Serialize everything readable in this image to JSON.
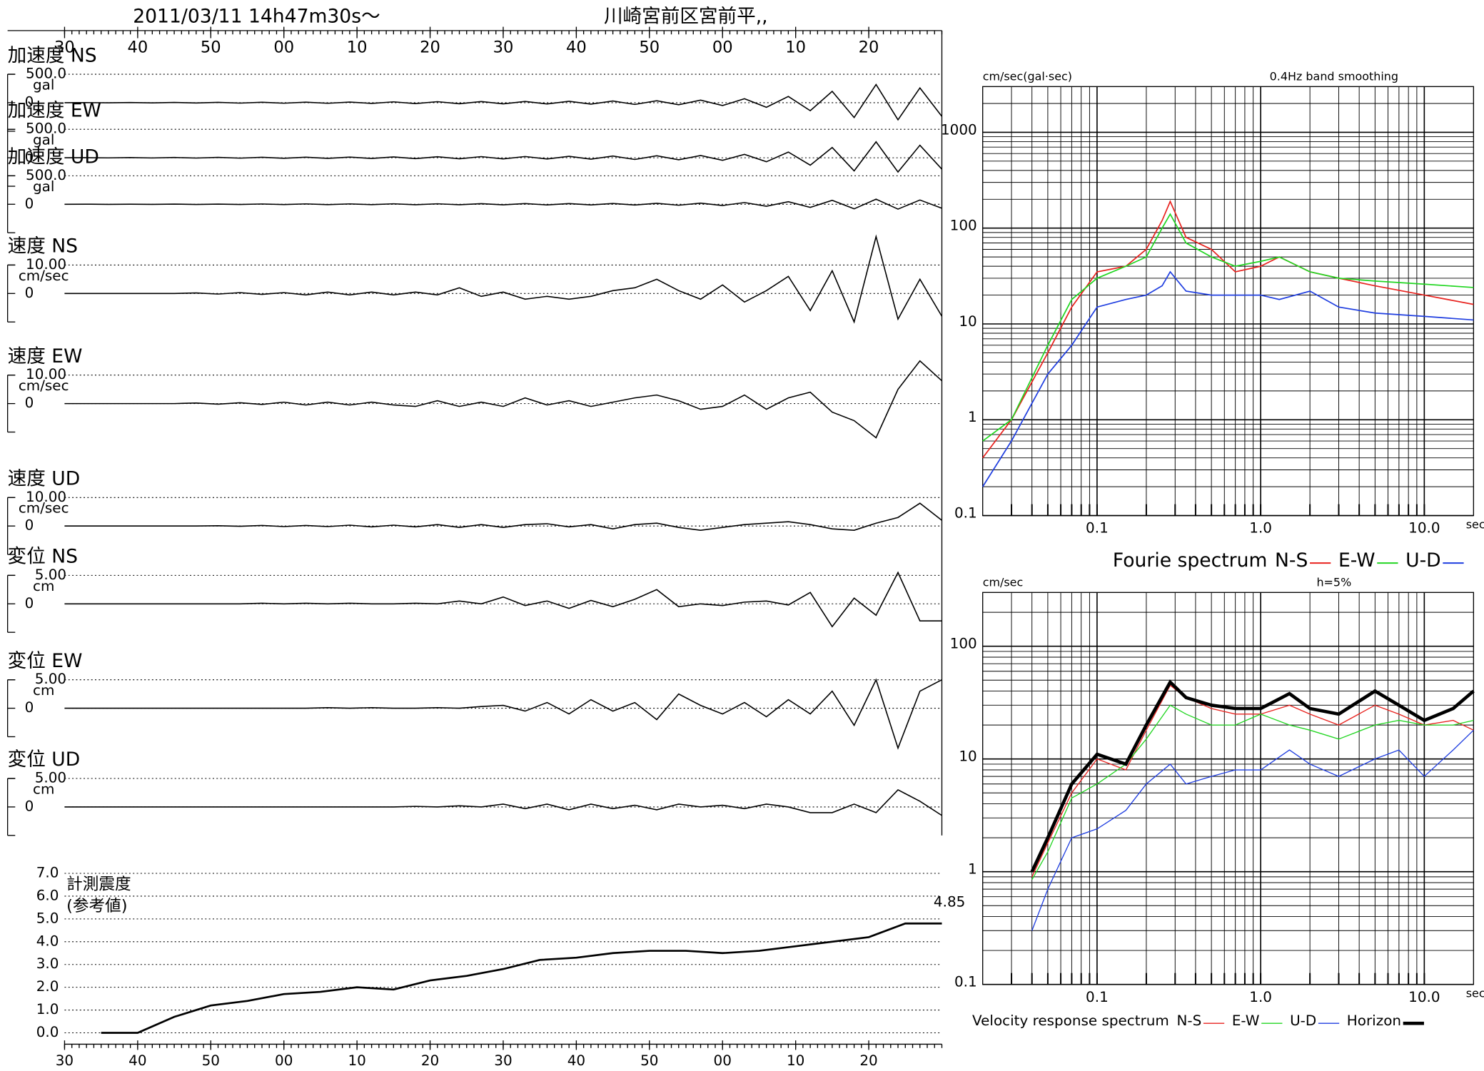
{
  "header": {
    "datetime": "2011/03/11  14h47m30s〜",
    "station": "川崎宮前区宮前平,,"
  },
  "chart_data": [
    {
      "type": "waveform",
      "x": [
        0,
        3,
        6,
        9,
        12,
        15,
        18,
        21,
        24,
        27,
        30,
        33,
        36,
        39,
        42,
        45,
        48,
        51,
        54,
        57,
        60,
        63,
        66,
        69,
        72,
        75,
        78,
        81,
        84,
        87,
        90,
        93,
        96,
        99,
        102,
        105,
        108,
        111,
        114,
        117,
        120
      ],
      "xlim": [
        0,
        120
      ],
      "xticks": [
        {
          "value": 0,
          "label": "30"
        },
        {
          "value": 10,
          "label": "40"
        },
        {
          "value": 20,
          "label": "50"
        },
        {
          "value": 30,
          "label": "00"
        },
        {
          "value": 40,
          "label": "10"
        },
        {
          "value": 50,
          "label": "20"
        },
        {
          "value": 60,
          "label": "30"
        },
        {
          "value": 70,
          "label": "40"
        },
        {
          "value": 80,
          "label": "50"
        },
        {
          "value": 90,
          "label": "00"
        },
        {
          "value": 100,
          "label": "10"
        },
        {
          "value": 110,
          "label": "20"
        }
      ],
      "panels": [
        {
          "title": "加速度 NS",
          "unit": "gal",
          "ylim": [
            -500,
            500
          ],
          "yticks": [
            {
              "value": 500,
              "label": "500.0"
            },
            0
          ],
          "values": [
            0,
            2,
            -2,
            3,
            -3,
            5,
            -5,
            6,
            -6,
            8,
            -8,
            10,
            -10,
            12,
            -12,
            15,
            -15,
            18,
            -18,
            20,
            -20,
            22,
            -22,
            25,
            -25,
            30,
            -30,
            35,
            -35,
            45,
            -50,
            70,
            -80,
            110,
            -140,
            200,
            -260,
            320,
            -300,
            260,
            -240
          ]
        },
        {
          "title": "加速度 EW",
          "unit": "gal",
          "ylim": [
            -500,
            500
          ],
          "yticks": [
            {
              "value": 500,
              "label": "500.0"
            },
            0
          ],
          "values": [
            0,
            2,
            -2,
            3,
            -3,
            5,
            -5,
            6,
            -6,
            8,
            -8,
            10,
            -10,
            12,
            -12,
            15,
            -15,
            18,
            -18,
            20,
            -20,
            22,
            -22,
            25,
            -25,
            30,
            -30,
            35,
            -35,
            40,
            -45,
            60,
            -70,
            100,
            -130,
            180,
            -230,
            280,
            -250,
            220,
            -200
          ]
        },
        {
          "title": "加速度 UD",
          "unit": "gal",
          "ylim": [
            -500,
            500
          ],
          "yticks": [
            {
              "value": 500,
              "label": "500.0"
            },
            0
          ],
          "values": [
            0,
            1,
            -1,
            2,
            -2,
            3,
            -3,
            4,
            -4,
            5,
            -5,
            6,
            -6,
            7,
            -7,
            8,
            -8,
            9,
            -9,
            10,
            -10,
            11,
            -11,
            12,
            -12,
            14,
            -14,
            16,
            -16,
            20,
            -22,
            30,
            -35,
            45,
            -55,
            70,
            -80,
            90,
            -85,
            75,
            -70
          ]
        },
        {
          "title": "速度 NS",
          "unit": "cm/sec",
          "ylim": [
            -10,
            10
          ],
          "yticks": [
            {
              "value": 10,
              "label": "10.00"
            },
            0
          ],
          "values": [
            0,
            0,
            0,
            0,
            0,
            0,
            0.2,
            -0.2,
            0.3,
            -0.3,
            0.3,
            -0.5,
            0.5,
            -0.5,
            0.5,
            -0.5,
            0.5,
            -0.5,
            2,
            -1,
            0.5,
            -2,
            -1,
            -2,
            -1,
            1,
            2,
            5,
            1,
            -2,
            3,
            -3,
            1,
            6,
            -6,
            8,
            -10,
            20,
            -9,
            5,
            -8
          ]
        },
        {
          "title": "速度 EW",
          "unit": "cm/sec",
          "ylim": [
            -10,
            10
          ],
          "yticks": [
            {
              "value": 10,
              "label": "10.00"
            },
            0
          ],
          "values": [
            0,
            0,
            0,
            0,
            0,
            0,
            0.2,
            -0.2,
            0.3,
            -0.3,
            0.5,
            -0.5,
            0.5,
            -0.5,
            0.5,
            -0.5,
            -1,
            1,
            -1,
            0.5,
            -1,
            2,
            -0.5,
            1,
            -1,
            0.5,
            2,
            3,
            1,
            -2,
            -1,
            3,
            -2,
            2,
            4,
            -3,
            -6,
            -12,
            5,
            15,
            8
          ]
        },
        {
          "title": "速度 UD",
          "unit": "cm/sec",
          "ylim": [
            -10,
            10
          ],
          "yticks": [
            {
              "value": 10,
              "label": "10.00"
            },
            0
          ],
          "values": [
            0,
            0,
            0,
            0,
            0,
            0,
            0,
            0.1,
            -0.1,
            0.2,
            -0.2,
            0.2,
            -0.2,
            0.3,
            -0.3,
            0.3,
            -0.3,
            0.5,
            -0.5,
            0.5,
            -0.5,
            0.5,
            0.8,
            -0.3,
            0.5,
            -1,
            0.5,
            1,
            -0.5,
            -1.5,
            -0.5,
            0.5,
            1,
            1.5,
            0.5,
            -1,
            -1.5,
            1,
            3,
            8,
            2
          ]
        },
        {
          "title": "変位 NS",
          "unit": "cm",
          "ylim": [
            -5,
            5
          ],
          "yticks": [
            {
              "value": 5,
              "label": "5.00"
            },
            0
          ],
          "values": [
            0,
            0,
            0,
            0,
            0,
            0,
            0,
            0,
            0,
            0.1,
            0,
            0.1,
            0,
            0.1,
            0,
            0,
            0.1,
            0,
            0.5,
            0,
            1.2,
            -0.3,
            0.5,
            -0.8,
            0.6,
            -0.5,
            0.8,
            2.5,
            -0.5,
            0,
            -0.3,
            0.3,
            0.5,
            -0.2,
            2,
            -4,
            1,
            -2,
            5.5,
            -3,
            -3
          ]
        },
        {
          "title": "変位 EW",
          "unit": "cm",
          "ylim": [
            -5,
            5
          ],
          "yticks": [
            {
              "value": 5,
              "label": "5.00"
            },
            0
          ],
          "values": [
            0,
            0,
            0,
            0,
            0,
            0,
            0,
            0,
            0,
            0,
            0,
            0,
            0.1,
            0,
            0.1,
            0,
            0,
            0.1,
            0,
            0.3,
            0.5,
            -0.5,
            1,
            -1,
            1.5,
            -0.5,
            1,
            -2,
            2.5,
            0.5,
            -1,
            1,
            -1.5,
            1.5,
            -1,
            3,
            -3,
            5,
            -7,
            3,
            5
          ]
        },
        {
          "title": "変位 UD",
          "unit": "cm",
          "ylim": [
            -5,
            5
          ],
          "yticks": [
            {
              "value": 5,
              "label": "5.00"
            },
            0
          ],
          "values": [
            0,
            0,
            0,
            0,
            0,
            0,
            0,
            0,
            0,
            0,
            0,
            0,
            0,
            0,
            0,
            0,
            0.1,
            0,
            0.2,
            0,
            0.5,
            -0.3,
            0.5,
            -0.5,
            0.5,
            -0.3,
            0.3,
            -0.5,
            0.5,
            0,
            0.3,
            -0.3,
            0.5,
            0,
            -1,
            -1,
            0.5,
            -1,
            3,
            1,
            -1.5
          ]
        }
      ]
    },
    {
      "type": "line",
      "title": "計測震度",
      "subtitle": "(参考値)",
      "annotation": "4.85",
      "color": "#000000",
      "x": [
        5,
        10,
        15,
        20,
        25,
        30,
        35,
        40,
        45,
        50,
        55,
        60,
        65,
        70,
        75,
        80,
        85,
        90,
        95,
        100,
        105,
        110,
        115,
        120
      ],
      "values": [
        0,
        0,
        0.7,
        1.2,
        1.4,
        1.7,
        1.8,
        2.0,
        1.9,
        2.3,
        2.5,
        2.8,
        3.2,
        3.3,
        3.5,
        3.6,
        3.6,
        3.5,
        3.6,
        3.8,
        4.0,
        4.2,
        4.8,
        4.8
      ],
      "xlim": [
        0,
        120
      ],
      "xticks": [
        {
          "value": 0,
          "label": "30"
        },
        {
          "value": 10,
          "label": "40"
        },
        {
          "value": 20,
          "label": "50"
        },
        {
          "value": 30,
          "label": "00"
        },
        {
          "value": 40,
          "label": "10"
        },
        {
          "value": 50,
          "label": "20"
        },
        {
          "value": 60,
          "label": "30"
        },
        {
          "value": 70,
          "label": "40"
        },
        {
          "value": 80,
          "label": "50"
        },
        {
          "value": 90,
          "label": "00"
        },
        {
          "value": 100,
          "label": "10"
        },
        {
          "value": 110,
          "label": "20"
        }
      ],
      "ylim": [
        0,
        7
      ],
      "yticks": [
        {
          "value": 0,
          "label": "0.0"
        },
        {
          "value": 1,
          "label": "1.0"
        },
        {
          "value": 2,
          "label": "2.0"
        },
        {
          "value": 3,
          "label": "3.0"
        },
        {
          "value": 4,
          "label": "4.0"
        },
        {
          "value": 5,
          "label": "5.0"
        },
        {
          "value": 6,
          "label": "6.0"
        },
        {
          "value": 7,
          "label": "7.0"
        }
      ],
      "grid": true
    },
    {
      "type": "loglog",
      "title": "Fourie spectrum",
      "y_label": "cm/sec(gal·sec)",
      "note": "0.4Hz band smoothing",
      "x_label": "sec",
      "log_scale": true,
      "grid": true,
      "xlim": [
        0.02,
        20
      ],
      "ylim": [
        0.1,
        3000
      ],
      "xticks": [
        0.1,
        {
          "value": 1,
          "label": "1.0"
        },
        {
          "value": 10,
          "label": "10.0"
        }
      ],
      "yticks": [
        0.1,
        1,
        10,
        100,
        1000
      ],
      "x": [
        0.02,
        0.03,
        0.05,
        0.07,
        0.1,
        0.15,
        0.2,
        0.25,
        0.28,
        0.35,
        0.5,
        0.7,
        1,
        1.3,
        2,
        3,
        5,
        10,
        20
      ],
      "series": [
        {
          "name": "N-S",
          "color": "#e8231f",
          "values": [
            0.4,
            1,
            5,
            15,
            35,
            40,
            60,
            120,
            190,
            80,
            60,
            35,
            40,
            50,
            35,
            30,
            25,
            20,
            16
          ]
        },
        {
          "name": "E-W",
          "color": "#22d622",
          "values": [
            0.6,
            1,
            6,
            18,
            30,
            40,
            50,
            100,
            140,
            70,
            50,
            40,
            45,
            50,
            35,
            30,
            28,
            26,
            24
          ]
        },
        {
          "name": "U-D",
          "color": "#1f3ee0",
          "values": [
            0.2,
            0.6,
            3,
            6,
            15,
            18,
            20,
            25,
            35,
            22,
            20,
            20,
            20,
            18,
            22,
            15,
            13,
            12,
            11
          ]
        }
      ]
    },
    {
      "type": "loglog",
      "title": "Velocity response spectrum",
      "y_label": "cm/sec",
      "note": "h=5%",
      "x_label": "sec",
      "log_scale": true,
      "grid": true,
      "xlim": [
        0.02,
        20
      ],
      "ylim": [
        0.1,
        300
      ],
      "xticks": [
        0.1,
        {
          "value": 1,
          "label": "1.0"
        },
        {
          "value": 10,
          "label": "10.0"
        }
      ],
      "yticks": [
        0.1,
        1,
        10,
        100
      ],
      "x": [
        0.04,
        0.05,
        0.07,
        0.1,
        0.15,
        0.2,
        0.28,
        0.35,
        0.5,
        0.7,
        1,
        1.5,
        2,
        3,
        5,
        7,
        10,
        15,
        20
      ],
      "series": [
        {
          "name": "N-S",
          "color": "#e8231f",
          "linewidth": 1,
          "values": [
            0.9,
            1.8,
            5,
            10,
            8,
            18,
            45,
            35,
            28,
            25,
            25,
            30,
            25,
            20,
            30,
            25,
            20,
            22,
            18
          ]
        },
        {
          "name": "E-W",
          "color": "#22d622",
          "linewidth": 1,
          "values": [
            0.85,
            1.5,
            4.5,
            6,
            9,
            15,
            30,
            25,
            20,
            20,
            25,
            20,
            18,
            15,
            20,
            22,
            20,
            20,
            22
          ]
        },
        {
          "name": "U-D",
          "color": "#1f3ee0",
          "linewidth": 1,
          "values": [
            0.3,
            0.7,
            2,
            2.4,
            3.5,
            6,
            9,
            6,
            7,
            8,
            8,
            12,
            9,
            7,
            10,
            12,
            7,
            12,
            18
          ]
        },
        {
          "name": "Horizon",
          "color": "#000000",
          "linewidth": 3.5,
          "values": [
            1,
            2,
            6,
            11,
            9,
            20,
            48,
            35,
            30,
            28,
            28,
            38,
            28,
            25,
            40,
            30,
            22,
            28,
            40
          ]
        }
      ]
    }
  ]
}
